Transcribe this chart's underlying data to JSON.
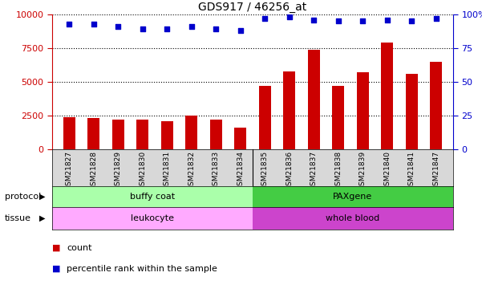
{
  "title": "GDS917 / 46256_at",
  "samples": [
    "GSM21827",
    "GSM21828",
    "GSM21829",
    "GSM21830",
    "GSM21831",
    "GSM21832",
    "GSM21833",
    "GSM21834",
    "GSM21835",
    "GSM21836",
    "GSM21837",
    "GSM21838",
    "GSM21839",
    "GSM21840",
    "GSM21841",
    "GSM21847"
  ],
  "counts": [
    2400,
    2350,
    2200,
    2200,
    2100,
    2500,
    2200,
    1600,
    4700,
    5800,
    7400,
    4700,
    5700,
    7900,
    5600,
    6500
  ],
  "percentile": [
    93,
    93,
    91,
    89,
    89,
    91,
    89,
    88,
    97,
    98,
    96,
    95,
    95,
    96,
    95,
    97
  ],
  "bar_color": "#cc0000",
  "dot_color": "#0000cc",
  "buffy_color": "#aaffaa",
  "paxgene_color": "#44cc44",
  "leukocyte_color": "#ffaaff",
  "whole_blood_color": "#cc44cc",
  "split_index": 8,
  "ylim_left": [
    0,
    10000
  ],
  "ylim_right": [
    0,
    100
  ],
  "yticks_left": [
    0,
    2500,
    5000,
    7500,
    10000
  ],
  "yticks_right": [
    0,
    25,
    50,
    75,
    100
  ],
  "grid_values": [
    2500,
    5000,
    7500
  ],
  "background_color": "#ffffff"
}
